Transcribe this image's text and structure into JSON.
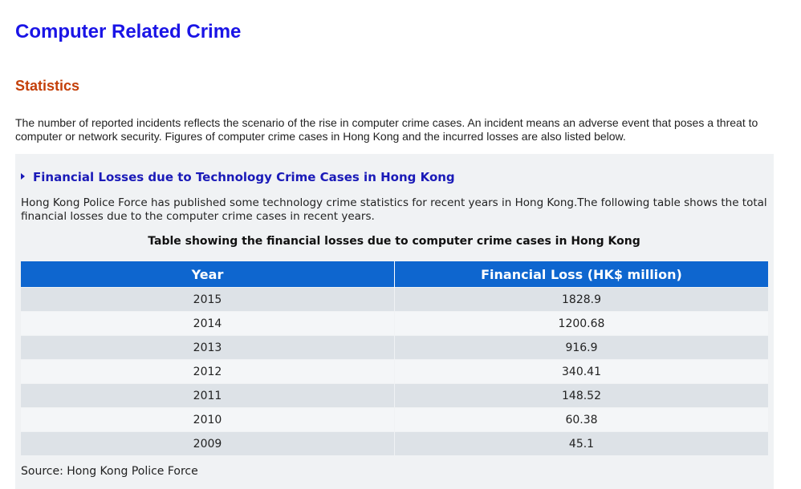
{
  "page": {
    "title": "Computer Related Crime",
    "section_title": "Statistics",
    "intro": "The number of reported incidents reflects the scenario of the rise in computer crime cases. An incident means an adverse event that poses a threat to computer or network security. Figures of computer crime cases in Hong Kong and the incurred losses are also listed below."
  },
  "panel": {
    "heading": "Financial Losses due to Technology Crime Cases in Hong Kong",
    "description": "Hong Kong Police Force has published some technology crime statistics for recent years in Hong Kong.The following table shows the total financial losses due to the computer crime cases in recent years.",
    "table_caption": "Table showing the financial losses due to computer crime cases in Hong Kong",
    "columns": [
      "Year",
      "Financial Loss (HK$ million)"
    ],
    "rows": [
      [
        "2015",
        "1828.9"
      ],
      [
        "2014",
        "1200.68"
      ],
      [
        "2013",
        "916.9"
      ],
      [
        "2012",
        "340.41"
      ],
      [
        "2011",
        "148.52"
      ],
      [
        "2010",
        "60.38"
      ],
      [
        "2009",
        "45.1"
      ]
    ],
    "source": "Source: Hong Kong Police Force"
  },
  "colors": {
    "title": "#1a14e6",
    "section_title": "#c4400a",
    "link": "#1a1ab8",
    "table_header": "#0e66cf"
  }
}
